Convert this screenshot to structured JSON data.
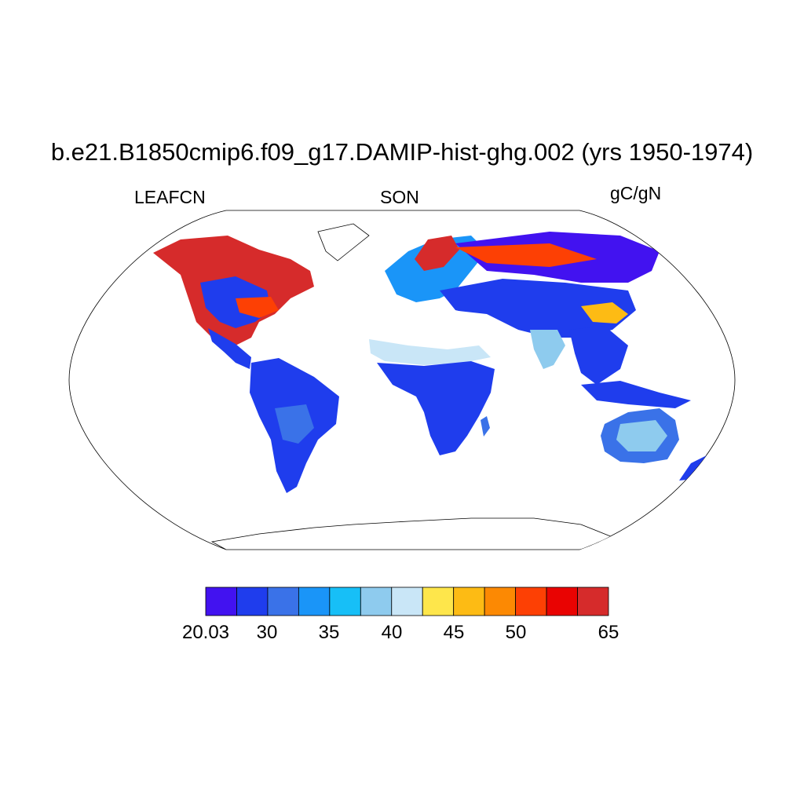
{
  "title": "b.e21.B1850cmip6.f09_g17.DAMIP-hist-ghg.002 (yrs 1950-1974)",
  "variable": "LEAFCN",
  "season": "SON",
  "units": "gC/gN",
  "projection": "Robinson",
  "colorbar": {
    "colors": [
      "#4212f0",
      "#1f3ded",
      "#3a72e8",
      "#1a95f8",
      "#17bff7",
      "#8ecbee",
      "#c9e6f7",
      "#fee64b",
      "#fdbb14",
      "#fc8903",
      "#fd4004",
      "#e90302",
      "#d62b2b"
    ],
    "tick_labels": [
      "20.03",
      "30",
      "35",
      "40",
      "45",
      "50",
      "65"
    ]
  }
}
